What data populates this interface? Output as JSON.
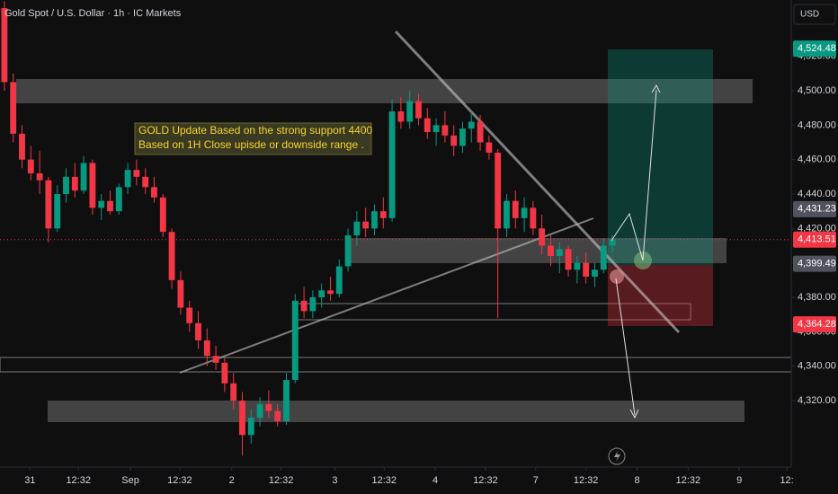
{
  "header": {
    "symbol": "Gold Spot / U.S. Dollar · 1h · IC Markets",
    "currency": "USD"
  },
  "chart_data": {
    "type": "candlestick",
    "up_color": "#089981",
    "down_color": "#f23645",
    "grid": false,
    "open": [
      4548,
      4505,
      4475,
      4460,
      4452,
      4448,
      4420,
      4440,
      4450,
      4442,
      4458,
      4432,
      4436,
      4430,
      4444,
      4454,
      4450,
      4444,
      4438,
      4418,
      4390,
      4374,
      4365,
      4355,
      4346,
      4342,
      4330,
      4320,
      4300,
      4310,
      4318,
      4314,
      4308,
      4332,
      4378,
      4372,
      4380,
      4384,
      4382,
      4398,
      4416,
      4424,
      4420,
      4430,
      4426,
      4488,
      4482,
      4494,
      4484,
      4476,
      4480,
      4474,
      4468,
      4478,
      4482,
      4470,
      4464,
      4420,
      4436,
      4426,
      4432,
      4420,
      4410,
      4404,
      4408,
      4396,
      4400,
      4392,
      4396,
      4410
    ],
    "high": [
      4552,
      4510,
      4480,
      4468,
      4465,
      4450,
      4445,
      4455,
      4458,
      4462,
      4460,
      4440,
      4442,
      4446,
      4458,
      4460,
      4455,
      4450,
      4440,
      4420,
      4395,
      4378,
      4372,
      4362,
      4352,
      4345,
      4336,
      4325,
      4315,
      4322,
      4326,
      4318,
      4336,
      4382,
      4386,
      4384,
      4388,
      4392,
      4402,
      4420,
      4430,
      4432,
      4434,
      4438,
      4495,
      4496,
      4500,
      4498,
      4490,
      4484,
      4488,
      4480,
      4482,
      4488,
      4486,
      4474,
      4466,
      4440,
      4442,
      4438,
      4436,
      4428,
      4416,
      4412,
      4410,
      4404,
      4406,
      4400,
      4414,
      4416
    ],
    "low": [
      4500,
      4470,
      4455,
      4448,
      4440,
      4412,
      4418,
      4435,
      4438,
      4440,
      4428,
      4425,
      4428,
      4428,
      4440,
      4445,
      4440,
      4435,
      4415,
      4385,
      4370,
      4360,
      4350,
      4340,
      4338,
      4325,
      4315,
      4288,
      4295,
      4305,
      4310,
      4305,
      4306,
      4330,
      4368,
      4368,
      4374,
      4378,
      4380,
      4395,
      4410,
      4415,
      4416,
      4420,
      4424,
      4478,
      4478,
      4480,
      4472,
      4468,
      4470,
      4462,
      4464,
      4470,
      4465,
      4460,
      4368,
      4415,
      4420,
      4418,
      4416,
      4405,
      4398,
      4394,
      4392,
      4388,
      4388,
      4386,
      4394,
      4406
    ],
    "close": [
      4505,
      4475,
      4460,
      4452,
      4448,
      4420,
      4440,
      4450,
      4442,
      4458,
      4432,
      4436,
      4430,
      4444,
      4454,
      4450,
      4444,
      4438,
      4418,
      4390,
      4374,
      4365,
      4355,
      4346,
      4342,
      4330,
      4320,
      4300,
      4310,
      4318,
      4314,
      4308,
      4332,
      4378,
      4372,
      4380,
      4384,
      4382,
      4398,
      4416,
      4424,
      4420,
      4430,
      4426,
      4488,
      4482,
      4494,
      4484,
      4476,
      4480,
      4474,
      4468,
      4478,
      4482,
      4470,
      4464,
      4420,
      4436,
      4426,
      4432,
      4420,
      4410,
      4404,
      4408,
      4396,
      4400,
      4392,
      4396,
      4410,
      4413.51
    ],
    "xlim": [
      -0.5,
      89.3
    ],
    "xticks": [
      {
        "value": 2.9,
        "label": "31"
      },
      {
        "value": 8.4,
        "label": "12:32"
      },
      {
        "value": 14.3,
        "label": "Sep"
      },
      {
        "value": 19.9,
        "label": "12:32"
      },
      {
        "value": 25.8,
        "label": "2"
      },
      {
        "value": 31.4,
        "label": "12:32"
      },
      {
        "value": 37.5,
        "label": "3"
      },
      {
        "value": 43.1,
        "label": "12:32"
      },
      {
        "value": 48.9,
        "label": "4"
      },
      {
        "value": 54.6,
        "label": "12:32"
      },
      {
        "value": 60.3,
        "label": "7"
      },
      {
        "value": 66.0,
        "label": "12:32"
      },
      {
        "value": 71.8,
        "label": "8"
      },
      {
        "value": 77.6,
        "label": "12:32"
      },
      {
        "value": 83.4,
        "label": "9"
      },
      {
        "value": 88.8,
        "label": "12:"
      }
    ],
    "ylim": [
      4281.4,
      4552.7
    ],
    "yticks": [
      {
        "value": 4320,
        "label": "4,320.00"
      },
      {
        "value": 4340,
        "label": "4,340.00"
      },
      {
        "value": 4360,
        "label": "4,360.00"
      },
      {
        "value": 4380,
        "label": "4,380.00"
      },
      {
        "value": 4400,
        "label": "4,400.00"
      },
      {
        "value": 4420,
        "label": "4,420.00"
      },
      {
        "value": 4440,
        "label": "4,440.00"
      },
      {
        "value": 4460,
        "label": "4,460.00"
      },
      {
        "value": 4480,
        "label": "4,480.00"
      },
      {
        "value": 4500,
        "label": "4,500.00"
      },
      {
        "value": 4520,
        "label": "4,520.00"
      }
    ],
    "price_tags": [
      {
        "value": 4524.48,
        "label": "4,524.48",
        "color": "#089981"
      },
      {
        "value": 4431.23,
        "label": "4,431.23",
        "color": "#50535e"
      },
      {
        "value": 4413.51,
        "label": "4,413.51",
        "color": "#f23645"
      },
      {
        "value": 4399.49,
        "label": "4,399.49",
        "color": "#50535e"
      },
      {
        "value": 4364.28,
        "label": "4,364.28",
        "color": "#f23645"
      }
    ],
    "annotation": [
      "GOLD Update Based on the strong support 4400",
      "Based on 1H Close upisde or downside range ."
    ]
  }
}
